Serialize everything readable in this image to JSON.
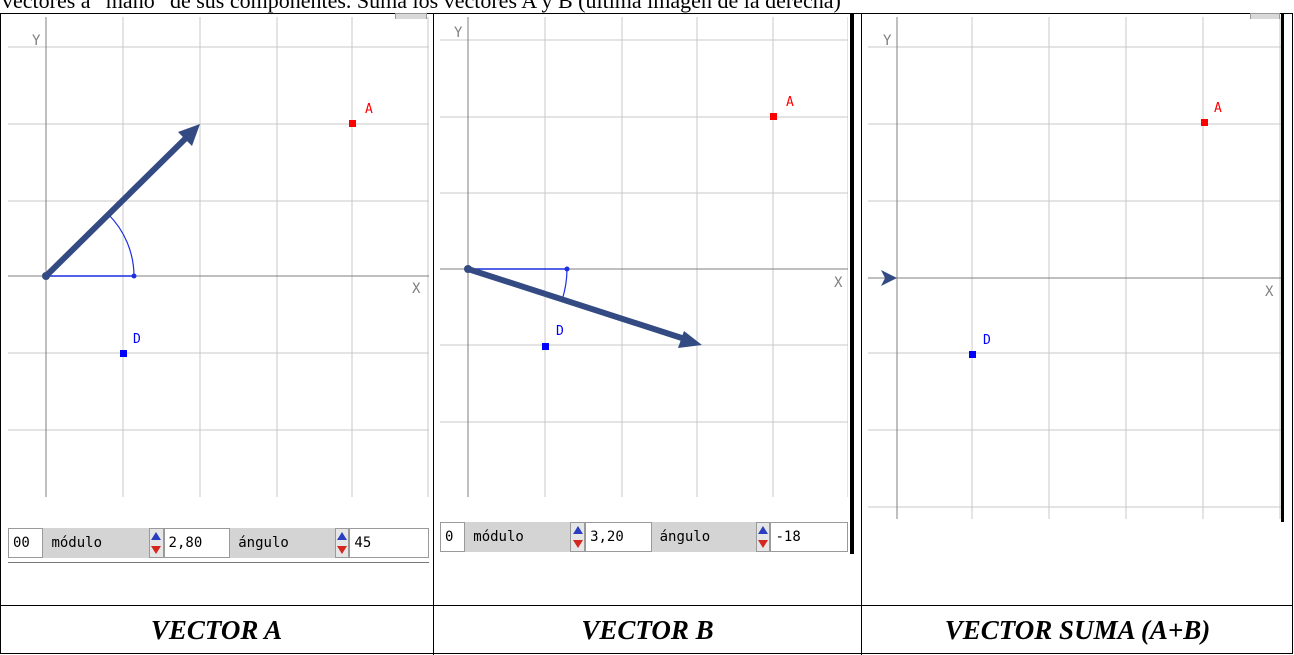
{
  "document": {
    "top_text": "vectores a “mano” de sus componentes. Suma los vectores A y B (última imagen de la derecha)"
  },
  "colors": {
    "grid": "#c8c8c8",
    "axis": "#7f7f7f",
    "vector": "#334b82",
    "angle_arc": "#1b2ee0",
    "point_a": "#ff0000",
    "point_d": "#0000ff"
  },
  "panels": [
    {
      "caption": "VECTOR A",
      "axis_y_label": "Y",
      "axis_x_label": "X",
      "point_a_label": "A",
      "point_d_label": "D",
      "controls": {
        "left_value": "00",
        "modulo_label": "módulo",
        "modulo_value": "2,80",
        "angulo_label": "ángulo",
        "angulo_value": "45"
      }
    },
    {
      "caption": "VECTOR B",
      "axis_y_label": "Y",
      "axis_x_label": "X",
      "point_a_label": "A",
      "point_d_label": "D",
      "controls": {
        "left_value": "0",
        "modulo_label": "módulo",
        "modulo_value": "3,20",
        "angulo_label": "ángulo",
        "angulo_value": "-18"
      }
    },
    {
      "caption": "VECTOR SUMA (A+B)",
      "axis_y_label": "Y",
      "axis_x_label": "X",
      "point_a_label": "A",
      "point_d_label": "D"
    }
  ]
}
